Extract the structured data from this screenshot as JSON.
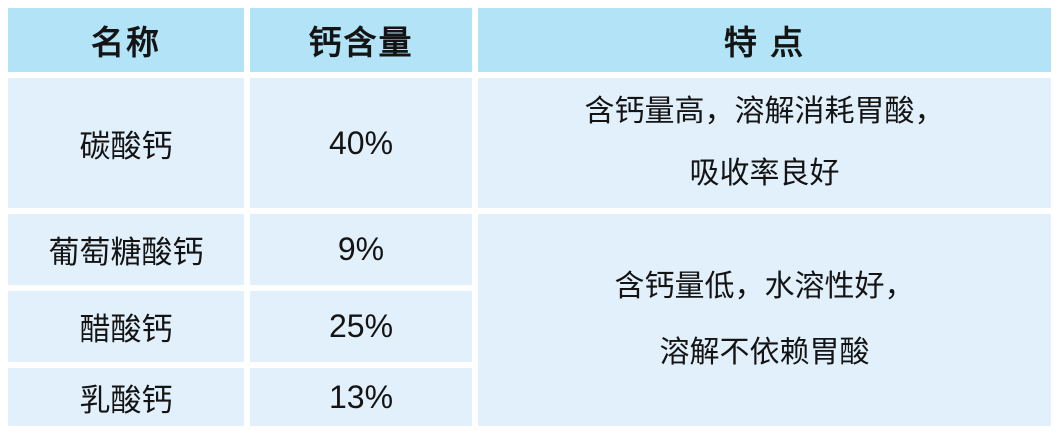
{
  "chart_data": {
    "type": "table",
    "columns": [
      "名称",
      "钙含量",
      "特 点"
    ],
    "rows": [
      [
        "碳酸钙",
        "40%",
        "含钙量高，溶解消耗胃酸，吸收率良好"
      ],
      [
        "葡萄糖酸钙",
        "9%",
        "含钙量低，水溶性好，溶解不依赖胃酸"
      ],
      [
        "醋酸钙",
        "25%",
        "含钙量低，水溶性好，溶解不依赖胃酸"
      ],
      [
        "乳酸钙",
        "13%",
        "含钙量低，水溶性好，溶解不依赖胃酸"
      ]
    ],
    "merged_cells": [
      {
        "column": "特 点",
        "row_span": [
          1,
          2,
          3
        ],
        "value": "含钙量低，水溶性好，溶解不依赖胃酸"
      }
    ],
    "title": "",
    "legend": "none",
    "grid": "white gutters between cells"
  },
  "display": {
    "feature_row1_lines": [
      "含钙量高，溶解消耗胃酸，",
      "吸收率良好"
    ],
    "feature_merged_lines": [
      "含钙量低，水溶性好，",
      "溶解不依赖胃酸"
    ]
  },
  "colors": {
    "header_bg": "#b2e3f7",
    "cell_bg": "#e2f0fb",
    "gap": "#ffffff",
    "text": "#141414"
  }
}
